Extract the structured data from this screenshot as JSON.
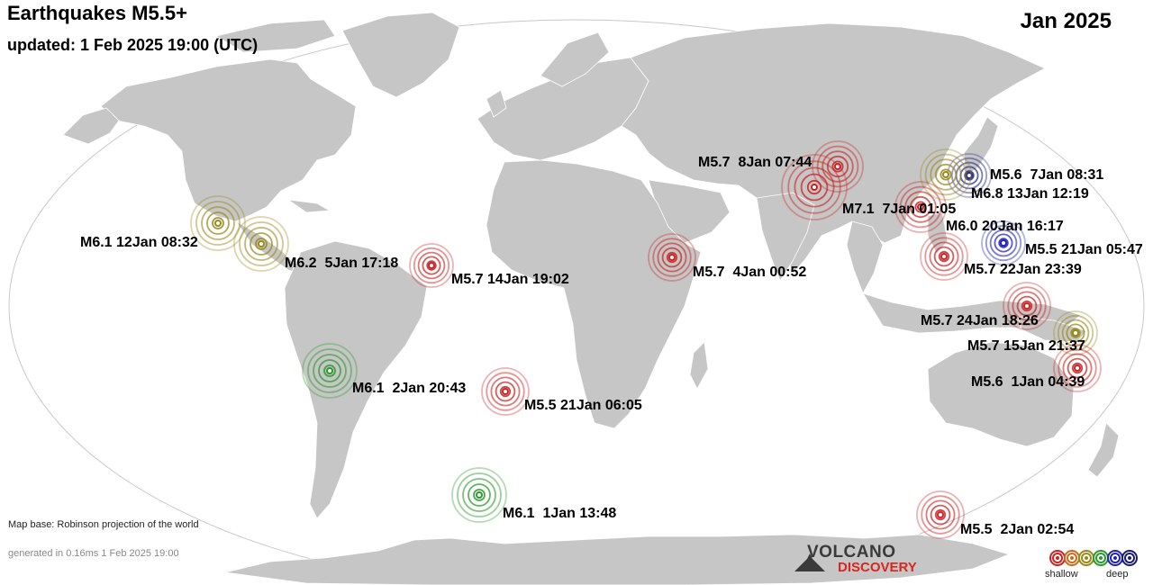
{
  "header": {
    "title": "Earthquakes M5.5+",
    "updated": "updated:  1 Feb 2025 19:00 (UTC)",
    "period": "Jan 2025"
  },
  "colors": {
    "ocean": "#ffffff",
    "land": "#c6c6c6",
    "shallow": "#cc2222",
    "intermediate_olive": "#99891a",
    "intermediate_green": "#2a9a2a",
    "deep_blue": "#2222bb",
    "deep_navy": "#1a1a77"
  },
  "earthquakes": [
    {
      "label": "M5.7  8Jan 07:44",
      "color": "#cc2222"
    },
    {
      "label": "M7.1  7Jan 01:05",
      "color": "#cc2222"
    },
    {
      "label": "M5.6  7Jan 08:31",
      "color": "#2a2a88"
    },
    {
      "label": "M6.8 13Jan 12:19",
      "color": "#99891a"
    },
    {
      "label": "M6.0 20Jan 16:17",
      "color": "#cc2222"
    },
    {
      "label": "M5.5 21Jan 05:47",
      "color": "#2222bb"
    },
    {
      "label": "M5.7 22Jan 23:39",
      "color": "#cc2222"
    },
    {
      "label": "M5.7 24Jan 18:26",
      "color": "#cc2222"
    },
    {
      "label": "M5.7 15Jan 21:37",
      "color": "#99891a"
    },
    {
      "label": "M5.6  1Jan 04:39",
      "color": "#cc2222"
    },
    {
      "label": "M5.7  4Jan 00:52",
      "color": "#cc2222"
    },
    {
      "label": "M6.1 12Jan 08:32",
      "color": "#99891a"
    },
    {
      "label": "M6.2  5Jan 17:18",
      "color": "#99891a"
    },
    {
      "label": "M5.7 14Jan 19:02",
      "color": "#cc2222"
    },
    {
      "label": "M6.1  2Jan 20:43",
      "color": "#2a9a2a"
    },
    {
      "label": "M5.5 21Jan 06:05",
      "color": "#cc2222"
    },
    {
      "label": "M6.1  1Jan 13:48",
      "color": "#2a9a2a"
    },
    {
      "label": "M5.5  2Jan 02:54",
      "color": "#cc2222"
    }
  ],
  "footer": {
    "map_base": "Map base: Robinson projection of the world",
    "generated": "generated in 0.16ms  1 Feb 2025 19:00"
  },
  "logo": {
    "word1": "VOLCANO",
    "word2": "DISCOVERY"
  },
  "legend": {
    "shallow": "shallow",
    "deep": "deep",
    "colors": [
      "#cc2222",
      "#d06a1a",
      "#99891a",
      "#2a9a2a",
      "#2222bb",
      "#1a1a77"
    ]
  }
}
